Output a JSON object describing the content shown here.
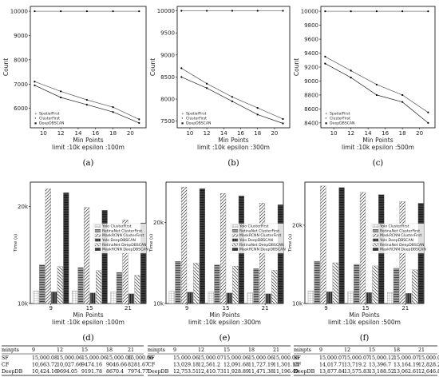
{
  "chart_data": [
    {
      "type": "line",
      "caption": "(a)",
      "xlabel": "Min Points",
      "ylabel": "Count",
      "subtitle": "limit :10k epsilon :100m",
      "x": [
        9,
        12,
        15,
        18,
        21
      ],
      "xticks": [
        10,
        12,
        14,
        16,
        18,
        20
      ],
      "xlim": [
        8.5,
        21.8
      ],
      "yticks": [
        6000,
        7000,
        8000,
        9000,
        10000
      ],
      "ylim": [
        5200,
        10200
      ],
      "series": [
        {
          "name": "SpatialFirst",
          "values": [
            10000,
            10000,
            10000,
            10000,
            10000
          ]
        },
        {
          "name": "ClusterFirst",
          "values": [
            7100,
            6700,
            6350,
            6050,
            5550
          ]
        },
        {
          "name": "DeepDBSCAN",
          "values": [
            6950,
            6450,
            6150,
            5850,
            5400
          ]
        }
      ]
    },
    {
      "type": "line",
      "caption": "(b)",
      "xlabel": "Min Points",
      "ylabel": "Count",
      "subtitle": "limit :10k epsilon :300m",
      "x": [
        9,
        12,
        15,
        18,
        21
      ],
      "xticks": [
        10,
        12,
        14,
        16,
        18,
        20
      ],
      "xlim": [
        8.5,
        21.8
      ],
      "yticks": [
        7500,
        8000,
        8500,
        9000,
        9500,
        10000
      ],
      "ylim": [
        7350,
        10100
      ],
      "series": [
        {
          "name": "SpatialFirst",
          "values": [
            10000,
            10000,
            10000,
            10000,
            10000
          ]
        },
        {
          "name": "ClusterFirst",
          "values": [
            8700,
            8350,
            8050,
            7800,
            7550
          ]
        },
        {
          "name": "DeepDBSCAN",
          "values": [
            8500,
            8250,
            7950,
            7650,
            7450
          ]
        }
      ]
    },
    {
      "type": "line",
      "caption": "(c)",
      "xlabel": "Min Points",
      "ylabel": "Count",
      "subtitle": "limit :10k epsilon :500m",
      "x": [
        9,
        12,
        15,
        18,
        21
      ],
      "xticks": [
        10,
        12,
        14,
        16,
        18,
        20
      ],
      "xlim": [
        8.5,
        21.8
      ],
      "yticks": [
        8400,
        8600,
        8800,
        9000,
        9200,
        9400,
        9600,
        9800,
        10000
      ],
      "ylim": [
        8330,
        10070
      ],
      "series": [
        {
          "name": "SpatialFirst",
          "values": [
            10000,
            10000,
            10000,
            10000,
            10000
          ]
        },
        {
          "name": "ClusterFirst",
          "values": [
            9350,
            9150,
            8950,
            8800,
            8550
          ]
        },
        {
          "name": "DeepDBSCAN",
          "values": [
            9250,
            9050,
            8800,
            8700,
            8400
          ]
        }
      ]
    },
    {
      "type": "bar",
      "caption": "(d)",
      "xlabel": "Min Points",
      "ylabel": "Time (s)",
      "subtitle": "limit :10k epsilon :100m",
      "categories": [
        9,
        15,
        21
      ],
      "yticks": [
        "10k",
        "20k"
      ],
      "ylim": [
        10000,
        22500
      ],
      "series": [
        {
          "name": "Yolo ClusterFirst",
          "values": [
            11300,
            11300,
            11200
          ]
        },
        {
          "name": "RetinaNet ClusterFirst",
          "values": [
            14000,
            13700,
            13200
          ]
        },
        {
          "name": "MaskRCNN ClusterFirst",
          "values": [
            21800,
            19900,
            18600
          ]
        },
        {
          "name": "Yolo DeepDBSCAN",
          "values": [
            11200,
            11100,
            11000
          ]
        },
        {
          "name": "RetinaNet DeepDBSCAN",
          "values": [
            13800,
            13400,
            12900
          ]
        },
        {
          "name": "MaskRCNN DeepDBSCAN",
          "values": [
            21400,
            19600,
            18300
          ]
        }
      ]
    },
    {
      "type": "bar",
      "caption": "(e)",
      "xlabel": "Min Points",
      "ylabel": "Time (s)",
      "subtitle": "limit :10k epsilon :300m",
      "categories": [
        9,
        15,
        21
      ],
      "yticks": [
        "10k",
        "20k"
      ],
      "ylim": [
        10000,
        25000
      ],
      "series": [
        {
          "name": "Yolo ClusterFirst",
          "values": [
            11500,
            11400,
            11300
          ]
        },
        {
          "name": "RetinaNet ClusterFirst",
          "values": [
            15200,
            14800,
            14300
          ]
        },
        {
          "name": "MaskRCNN ClusterFirst",
          "values": [
            24400,
            23600,
            22400
          ]
        },
        {
          "name": "Yolo DeepDBSCAN",
          "values": [
            11400,
            11300,
            11200
          ]
        },
        {
          "name": "RetinaNet DeepDBSCAN",
          "values": [
            15000,
            14600,
            14100
          ]
        },
        {
          "name": "MaskRCNN DeepDBSCAN",
          "values": [
            24200,
            23300,
            22200
          ]
        }
      ]
    },
    {
      "type": "bar",
      "caption": "(f)",
      "xlabel": "Min Points",
      "ylabel": "Time (s)",
      "subtitle": "limit :10k epsilon :500m",
      "categories": [
        9,
        15,
        21
      ],
      "yticks": [
        "10k",
        "20k"
      ],
      "ylim": [
        10000,
        25500
      ],
      "series": [
        {
          "name": "Yolo ClusterFirst",
          "values": [
            11600,
            11500,
            11400
          ]
        },
        {
          "name": "RetinaNet ClusterFirst",
          "values": [
            15400,
            15000,
            14500
          ]
        },
        {
          "name": "MaskRCNN ClusterFirst",
          "values": [
            25000,
            24200,
            23000
          ]
        },
        {
          "name": "Yolo DeepDBSCAN",
          "values": [
            11500,
            11400,
            11300
          ]
        },
        {
          "name": "RetinaNet DeepDBSCAN",
          "values": [
            15200,
            14800,
            14300
          ]
        },
        {
          "name": "MaskRCNN DeepDBSCAN",
          "values": [
            24800,
            23900,
            22800
          ]
        }
      ]
    }
  ],
  "tables": [
    {
      "header": [
        "minpts",
        "9",
        "12",
        "15",
        "18",
        "21"
      ],
      "rows": [
        [
          "SF",
          "15,000.08",
          "15,000.06",
          "15,000.06",
          "15,000.06",
          "15,000.06"
        ],
        [
          "CF",
          "10,663.72",
          "10,027.66",
          "9474.16",
          "9046.66",
          "8281.67"
        ],
        [
          "DeepDB",
          "10,424.16",
          "9694.05",
          "9191.78",
          "8670.4",
          "7974.77"
        ]
      ]
    },
    {
      "header": [
        "minpts",
        "9",
        "12",
        "15",
        "18",
        "21"
      ],
      "rows": [
        [
          "SF",
          "15,000.06",
          "15,000.07",
          "15,000.06",
          "15,000.06",
          "15,000.06"
        ],
        [
          "CF",
          "13,029.18",
          "12,561.2",
          "12,091.68",
          "11,727.19",
          "11,301.18"
        ],
        [
          "DeepDB",
          "12,753.51",
          "12,410.73",
          "11,928.89",
          "11,471.38",
          "11,196.49"
        ]
      ]
    },
    {
      "header": [
        "minpts",
        "9",
        "12",
        "15",
        "18",
        "21"
      ],
      "rows": [
        [
          "SF",
          "15,000.07",
          "15,000.07",
          "15,000.12",
          "15,000.07",
          "15,000.08"
        ],
        [
          "CF",
          "14,017.71",
          "13,719.2",
          "13,396.7",
          "13,164.19",
          "12,828.2"
        ],
        [
          "DeepDB",
          "13,877.84",
          "13,575.83",
          "13,188.52",
          "13,062.61",
          "12,646.8"
        ]
      ]
    }
  ]
}
